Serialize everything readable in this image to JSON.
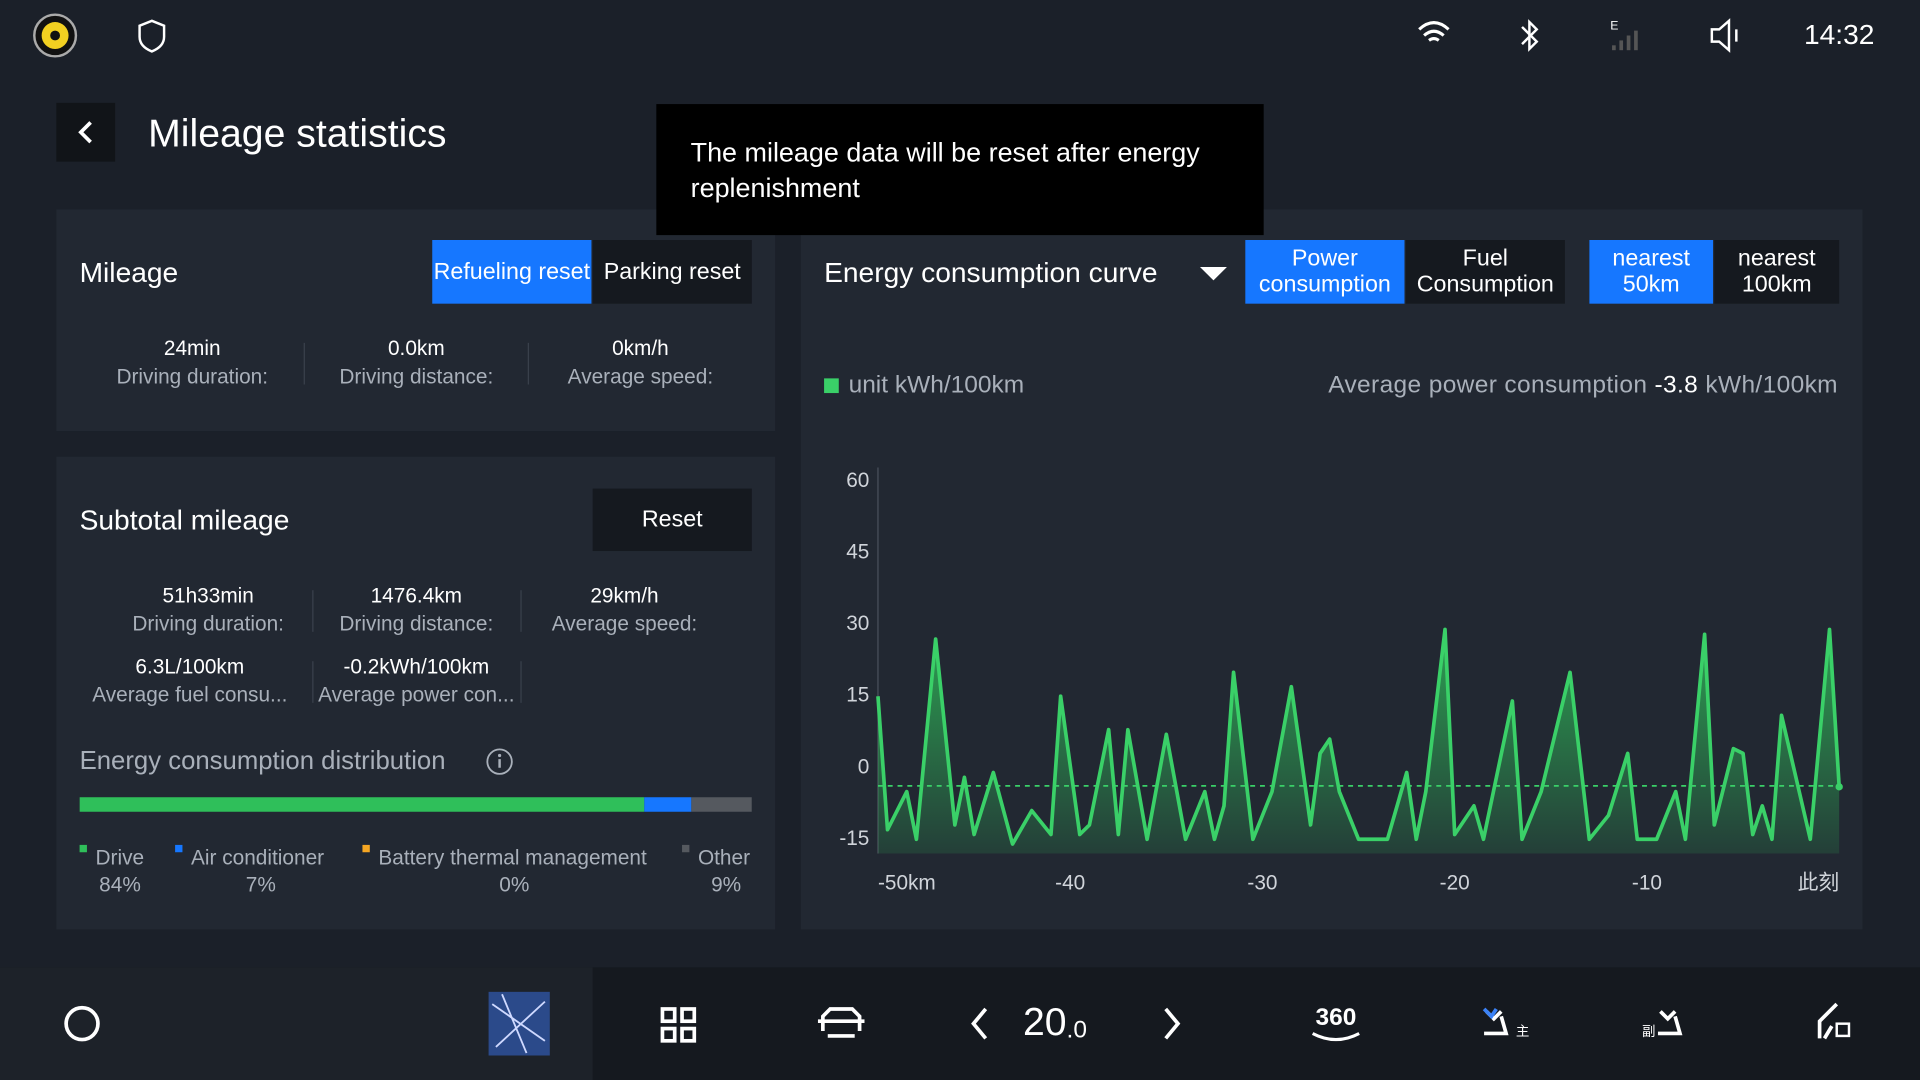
{
  "status_bar": {
    "network": "E",
    "time": "14:32"
  },
  "header": {
    "title": "Mileage statistics"
  },
  "tooltip": "The mileage data will be reset after energy replenishment",
  "mileage": {
    "title": "Mileage",
    "tabs": [
      "Refueling reset",
      "Parking reset"
    ],
    "stats": [
      {
        "value": "24min",
        "label": "Driving duration:"
      },
      {
        "value": "0.0km",
        "label": "Driving distance:"
      },
      {
        "value": "0km/h",
        "label": "Average speed:"
      }
    ]
  },
  "subtotal": {
    "title": "Subtotal mileage",
    "button": "Reset",
    "stats": [
      {
        "value": "51h33min",
        "label": "Driving duration:"
      },
      {
        "value": "1476.4km",
        "label": "Driving distance:"
      },
      {
        "value": "29km/h",
        "label": "Average speed:"
      },
      {
        "value": "6.3L/100km",
        "label": "Average fuel consu..."
      },
      {
        "value": "-0.2kWh/100km",
        "label": "Average power con..."
      }
    ]
  },
  "distribution": {
    "title": "Energy consumption distribution",
    "items": [
      {
        "name": "Drive",
        "value": 84,
        "label": "84%",
        "color": "#2fbf5a"
      },
      {
        "name": "Air conditioner",
        "value": 7,
        "label": "7%",
        "color": "#1677ff"
      },
      {
        "name": "Battery thermal management",
        "value": 0,
        "label": "0%",
        "color": "#f5a623"
      },
      {
        "name": "Other",
        "value": 9,
        "label": "9%",
        "color": "#55595f"
      }
    ]
  },
  "chart_data": {
    "type": "line",
    "title": "Energy consumption curve",
    "tabs": [
      "Power consumption",
      "Fuel Consumption"
    ],
    "range_tabs": [
      "nearest 50km",
      "nearest 100km"
    ],
    "legend": "unit kWh/100km",
    "average_label": "Average power consumption",
    "average": -3.8,
    "average_unit": "kWh/100km",
    "color": "#3ad068",
    "x": [
      -50,
      -49.5,
      -48.5,
      -48,
      -47,
      -46,
      -45.5,
      -45,
      -44,
      -43,
      -42,
      -41,
      -40.5,
      -39.5,
      -39,
      -38,
      -37.5,
      -37,
      -36,
      -35,
      -34,
      -33,
      -32.5,
      -32,
      -31.5,
      -30.5,
      -29.5,
      -28.5,
      -27.5,
      -27,
      -26.5,
      -26,
      -25,
      -23.5,
      -22.5,
      -22,
      -21.5,
      -20.5,
      -20,
      -19,
      -18.5,
      -17,
      -16.5,
      -15.5,
      -14,
      -13,
      -12,
      -11,
      -10.5,
      -9.5,
      -8.5,
      -8,
      -7,
      -6.5,
      -5.5,
      -5,
      -4.5,
      -4,
      -3.5,
      -3,
      -1.5,
      -0.5,
      0
    ],
    "values": [
      15,
      -13,
      -5,
      -15,
      27,
      -12,
      -2,
      -14,
      -1,
      -16,
      -9,
      -14,
      15,
      -14,
      -12,
      8,
      -14,
      8,
      -15,
      7,
      -15,
      -5,
      -15,
      -8,
      20,
      -15,
      -5,
      17,
      -12,
      3,
      6,
      -5,
      -15,
      -15,
      -1,
      -15,
      -5,
      29,
      -14,
      -8,
      -15,
      14,
      -15,
      -5,
      20,
      -15,
      -10,
      3,
      -15,
      -15,
      -5,
      -15,
      28,
      -12,
      4,
      3,
      -14,
      -8,
      -15,
      11,
      -15,
      29,
      -4
    ],
    "xlim": [
      -50,
      0
    ],
    "ylim": [
      -18,
      63
    ],
    "xticks": [
      {
        "value": -50,
        "label": "-50km"
      },
      -40,
      -30,
      -20,
      -10,
      {
        "value": 0,
        "label": "此刻"
      }
    ],
    "yticks": [
      -15,
      0,
      15,
      30,
      45,
      60
    ]
  },
  "bottom_bar": {
    "app": "backdesktop",
    "temperature": "20",
    "temperature_decimal": ".0",
    "camera": "360",
    "seat_labels": [
      "主",
      "副"
    ]
  }
}
